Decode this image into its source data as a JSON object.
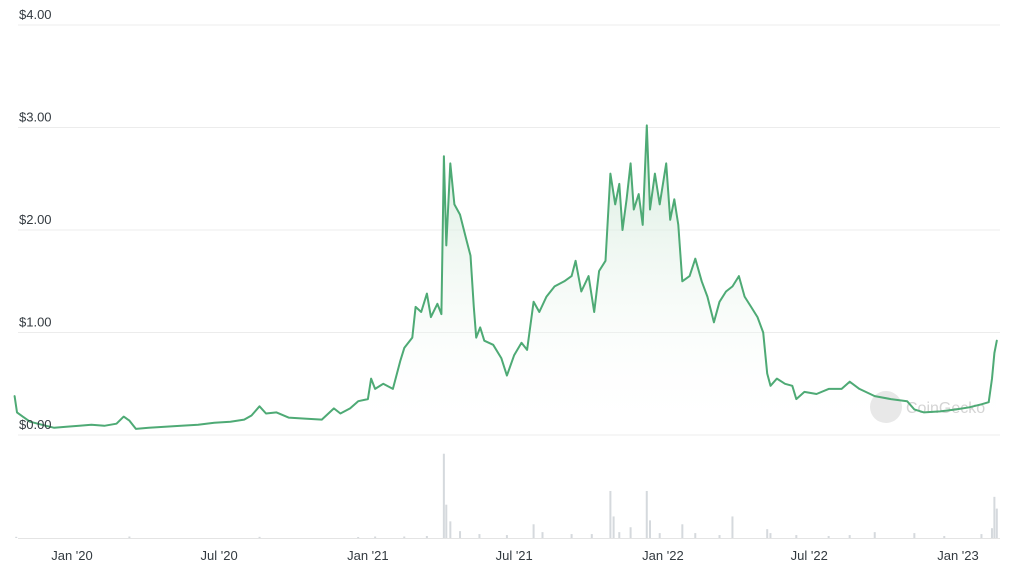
{
  "chart_data": {
    "type": "area",
    "title": "",
    "xlabel": "",
    "ylabel": "",
    "ylim": [
      0,
      4
    ],
    "y_ticks": [
      {
        "value": 0,
        "label": "$0.00"
      },
      {
        "value": 1,
        "label": "$1.00"
      },
      {
        "value": 2,
        "label": "$2.00"
      },
      {
        "value": 3,
        "label": "$3.00"
      },
      {
        "value": 4,
        "label": "$4.00"
      }
    ],
    "x_ticks": [
      {
        "date": "2020-01-01",
        "label": "Jan '20"
      },
      {
        "date": "2020-07-01",
        "label": "Jul '20"
      },
      {
        "date": "2021-01-01",
        "label": "Jan '21"
      },
      {
        "date": "2021-07-01",
        "label": "Jul '21"
      },
      {
        "date": "2022-01-01",
        "label": "Jan '22"
      },
      {
        "date": "2022-07-01",
        "label": "Jul '22"
      },
      {
        "date": "2023-01-01",
        "label": "Jan '23"
      }
    ],
    "grid": true,
    "line_color": "#4eaa75",
    "volume_color": "#d5d9dd",
    "watermark": "CoinGecko",
    "series": [
      {
        "points": [
          [
            "2019-10-22",
            0.38
          ],
          [
            "2019-10-25",
            0.22
          ],
          [
            "2019-11-01",
            0.18
          ],
          [
            "2019-11-10",
            0.13
          ],
          [
            "2019-11-25",
            0.1
          ],
          [
            "2019-12-10",
            0.07
          ],
          [
            "2019-12-25",
            0.08
          ],
          [
            "2020-01-10",
            0.09
          ],
          [
            "2020-01-25",
            0.1
          ],
          [
            "2020-02-10",
            0.09
          ],
          [
            "2020-02-25",
            0.11
          ],
          [
            "2020-03-05",
            0.18
          ],
          [
            "2020-03-12",
            0.14
          ],
          [
            "2020-03-20",
            0.06
          ],
          [
            "2020-04-05",
            0.07
          ],
          [
            "2020-04-25",
            0.08
          ],
          [
            "2020-05-15",
            0.09
          ],
          [
            "2020-06-05",
            0.1
          ],
          [
            "2020-06-25",
            0.12
          ],
          [
            "2020-07-15",
            0.13
          ],
          [
            "2020-08-01",
            0.15
          ],
          [
            "2020-08-10",
            0.19
          ],
          [
            "2020-08-20",
            0.28
          ],
          [
            "2020-08-28",
            0.21
          ],
          [
            "2020-09-10",
            0.22
          ],
          [
            "2020-09-25",
            0.17
          ],
          [
            "2020-10-15",
            0.16
          ],
          [
            "2020-11-05",
            0.15
          ],
          [
            "2020-11-20",
            0.26
          ],
          [
            "2020-11-28",
            0.21
          ],
          [
            "2020-12-10",
            0.26
          ],
          [
            "2020-12-20",
            0.33
          ],
          [
            "2021-01-01",
            0.35
          ],
          [
            "2021-01-05",
            0.55
          ],
          [
            "2021-01-10",
            0.45
          ],
          [
            "2021-01-20",
            0.5
          ],
          [
            "2021-02-01",
            0.45
          ],
          [
            "2021-02-10",
            0.72
          ],
          [
            "2021-02-15",
            0.85
          ],
          [
            "2021-02-25",
            0.95
          ],
          [
            "2021-03-01",
            1.25
          ],
          [
            "2021-03-08",
            1.2
          ],
          [
            "2021-03-15",
            1.38
          ],
          [
            "2021-03-20",
            1.15
          ],
          [
            "2021-03-28",
            1.28
          ],
          [
            "2021-04-02",
            1.18
          ],
          [
            "2021-04-05",
            2.72
          ],
          [
            "2021-04-08",
            1.85
          ],
          [
            "2021-04-13",
            2.65
          ],
          [
            "2021-04-18",
            2.25
          ],
          [
            "2021-04-25",
            2.15
          ],
          [
            "2021-05-03",
            1.9
          ],
          [
            "2021-05-08",
            1.75
          ],
          [
            "2021-05-12",
            1.25
          ],
          [
            "2021-05-15",
            0.95
          ],
          [
            "2021-05-20",
            1.05
          ],
          [
            "2021-05-25",
            0.92
          ],
          [
            "2021-06-05",
            0.88
          ],
          [
            "2021-06-15",
            0.75
          ],
          [
            "2021-06-22",
            0.58
          ],
          [
            "2021-07-01",
            0.78
          ],
          [
            "2021-07-10",
            0.9
          ],
          [
            "2021-07-17",
            0.83
          ],
          [
            "2021-07-25",
            1.3
          ],
          [
            "2021-08-01",
            1.2
          ],
          [
            "2021-08-10",
            1.35
          ],
          [
            "2021-08-20",
            1.45
          ],
          [
            "2021-09-01",
            1.5
          ],
          [
            "2021-09-10",
            1.55
          ],
          [
            "2021-09-15",
            1.7
          ],
          [
            "2021-09-22",
            1.4
          ],
          [
            "2021-10-01",
            1.55
          ],
          [
            "2021-10-08",
            1.2
          ],
          [
            "2021-10-14",
            1.6
          ],
          [
            "2021-10-22",
            1.7
          ],
          [
            "2021-10-28",
            2.55
          ],
          [
            "2021-11-03",
            2.25
          ],
          [
            "2021-11-08",
            2.45
          ],
          [
            "2021-11-12",
            2.0
          ],
          [
            "2021-11-17",
            2.3
          ],
          [
            "2021-11-22",
            2.65
          ],
          [
            "2021-11-26",
            2.2
          ],
          [
            "2021-12-02",
            2.35
          ],
          [
            "2021-12-07",
            2.05
          ],
          [
            "2021-12-12",
            3.02
          ],
          [
            "2021-12-16",
            2.2
          ],
          [
            "2021-12-22",
            2.55
          ],
          [
            "2021-12-28",
            2.25
          ],
          [
            "2022-01-05",
            2.65
          ],
          [
            "2022-01-10",
            2.1
          ],
          [
            "2022-01-15",
            2.3
          ],
          [
            "2022-01-20",
            2.05
          ],
          [
            "2022-01-25",
            1.5
          ],
          [
            "2022-02-03",
            1.55
          ],
          [
            "2022-02-10",
            1.72
          ],
          [
            "2022-02-18",
            1.5
          ],
          [
            "2022-02-25",
            1.35
          ],
          [
            "2022-03-05",
            1.1
          ],
          [
            "2022-03-12",
            1.3
          ],
          [
            "2022-03-20",
            1.4
          ],
          [
            "2022-03-28",
            1.45
          ],
          [
            "2022-04-05",
            1.55
          ],
          [
            "2022-04-12",
            1.35
          ],
          [
            "2022-04-20",
            1.25
          ],
          [
            "2022-04-28",
            1.15
          ],
          [
            "2022-05-05",
            1.0
          ],
          [
            "2022-05-10",
            0.6
          ],
          [
            "2022-05-14",
            0.48
          ],
          [
            "2022-05-22",
            0.55
          ],
          [
            "2022-06-01",
            0.5
          ],
          [
            "2022-06-10",
            0.48
          ],
          [
            "2022-06-15",
            0.35
          ],
          [
            "2022-06-25",
            0.42
          ],
          [
            "2022-07-10",
            0.4
          ],
          [
            "2022-07-25",
            0.45
          ],
          [
            "2022-08-10",
            0.45
          ],
          [
            "2022-08-20",
            0.52
          ],
          [
            "2022-09-01",
            0.45
          ],
          [
            "2022-09-20",
            0.38
          ],
          [
            "2022-10-10",
            0.35
          ],
          [
            "2022-10-30",
            0.33
          ],
          [
            "2022-11-08",
            0.25
          ],
          [
            "2022-11-20",
            0.22
          ],
          [
            "2022-12-10",
            0.23
          ],
          [
            "2022-12-30",
            0.25
          ],
          [
            "2023-01-15",
            0.27
          ],
          [
            "2023-01-30",
            0.3
          ],
          [
            "2023-02-08",
            0.32
          ],
          [
            "2023-02-12",
            0.55
          ],
          [
            "2023-02-15",
            0.8
          ],
          [
            "2023-02-18",
            0.92
          ]
        ]
      }
    ],
    "volume": [
      [
        "2019-10-24",
        0.012
      ],
      [
        "2020-03-12",
        0.015
      ],
      [
        "2020-08-20",
        0.012
      ],
      [
        "2020-12-20",
        0.01
      ],
      [
        "2021-01-10",
        0.015
      ],
      [
        "2021-02-15",
        0.015
      ],
      [
        "2021-03-15",
        0.02
      ],
      [
        "2021-04-05",
        0.86
      ],
      [
        "2021-04-08",
        0.34
      ],
      [
        "2021-04-13",
        0.17
      ],
      [
        "2021-04-25",
        0.07
      ],
      [
        "2021-05-19",
        0.04
      ],
      [
        "2021-06-22",
        0.03
      ],
      [
        "2021-07-25",
        0.14
      ],
      [
        "2021-08-05",
        0.06
      ],
      [
        "2021-09-10",
        0.04
      ],
      [
        "2021-10-05",
        0.04
      ],
      [
        "2021-10-28",
        0.48
      ],
      [
        "2021-11-01",
        0.22
      ],
      [
        "2021-11-08",
        0.06
      ],
      [
        "2021-11-22",
        0.11
      ],
      [
        "2021-12-12",
        0.48
      ],
      [
        "2021-12-16",
        0.18
      ],
      [
        "2021-12-28",
        0.05
      ],
      [
        "2022-01-25",
        0.14
      ],
      [
        "2022-02-10",
        0.05
      ],
      [
        "2022-03-12",
        0.03
      ],
      [
        "2022-03-28",
        0.22
      ],
      [
        "2022-05-10",
        0.09
      ],
      [
        "2022-05-14",
        0.05
      ],
      [
        "2022-06-15",
        0.03
      ],
      [
        "2022-07-25",
        0.02
      ],
      [
        "2022-08-20",
        0.03
      ],
      [
        "2022-09-20",
        0.06
      ],
      [
        "2022-11-08",
        0.05
      ],
      [
        "2022-12-15",
        0.02
      ],
      [
        "2023-01-30",
        0.04
      ],
      [
        "2023-02-12",
        0.1
      ],
      [
        "2023-02-15",
        0.42
      ],
      [
        "2023-02-18",
        0.3
      ]
    ]
  }
}
